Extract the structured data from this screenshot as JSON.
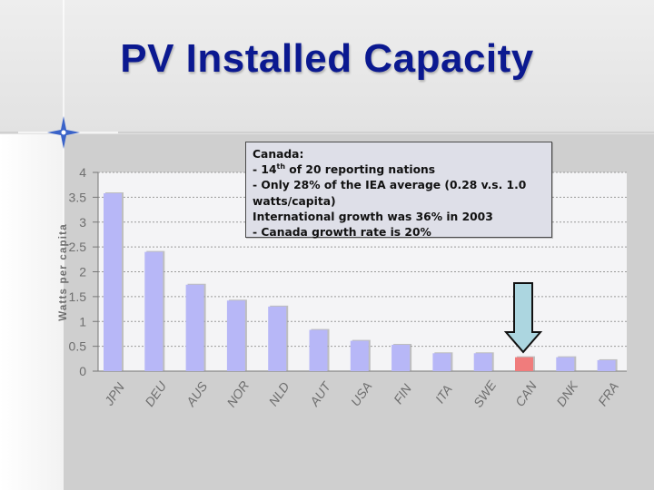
{
  "title": "PV Installed Capacity",
  "note": {
    "line1": "Canada:",
    "line2_prefix": "- 14",
    "line2_sup": "th",
    "line2_suffix": " of 20 reporting nations",
    "line3": "- Only 28% of the IEA average (0.28 v.s. 1.0",
    "line4": "watts/capita)",
    "line5": "International growth was 36% in 2003",
    "line6": "- Canada growth rate is 20%"
  },
  "colors": {
    "title": "#0b1990",
    "bar": "#b7b7f7",
    "highlight_bar": "#f07c7c",
    "arrow": "#acd6e0"
  },
  "chart_data": {
    "type": "bar",
    "ylabel": "Watts per capita",
    "ylim": [
      0,
      4
    ],
    "yticks": [
      "0",
      "0.5",
      "1",
      "1.5",
      "2",
      "2.5",
      "3",
      "3.5",
      "4"
    ],
    "categories": [
      "JPN",
      "DEU",
      "AUS",
      "NOR",
      "NLD",
      "AUT",
      "USA",
      "FIN",
      "ITA",
      "SWE",
      "CAN",
      "DNK",
      "FRA"
    ],
    "values": [
      3.58,
      2.4,
      1.74,
      1.42,
      1.3,
      0.83,
      0.61,
      0.53,
      0.36,
      0.36,
      0.28,
      0.28,
      0.22
    ],
    "highlight": "CAN",
    "grid": true
  }
}
